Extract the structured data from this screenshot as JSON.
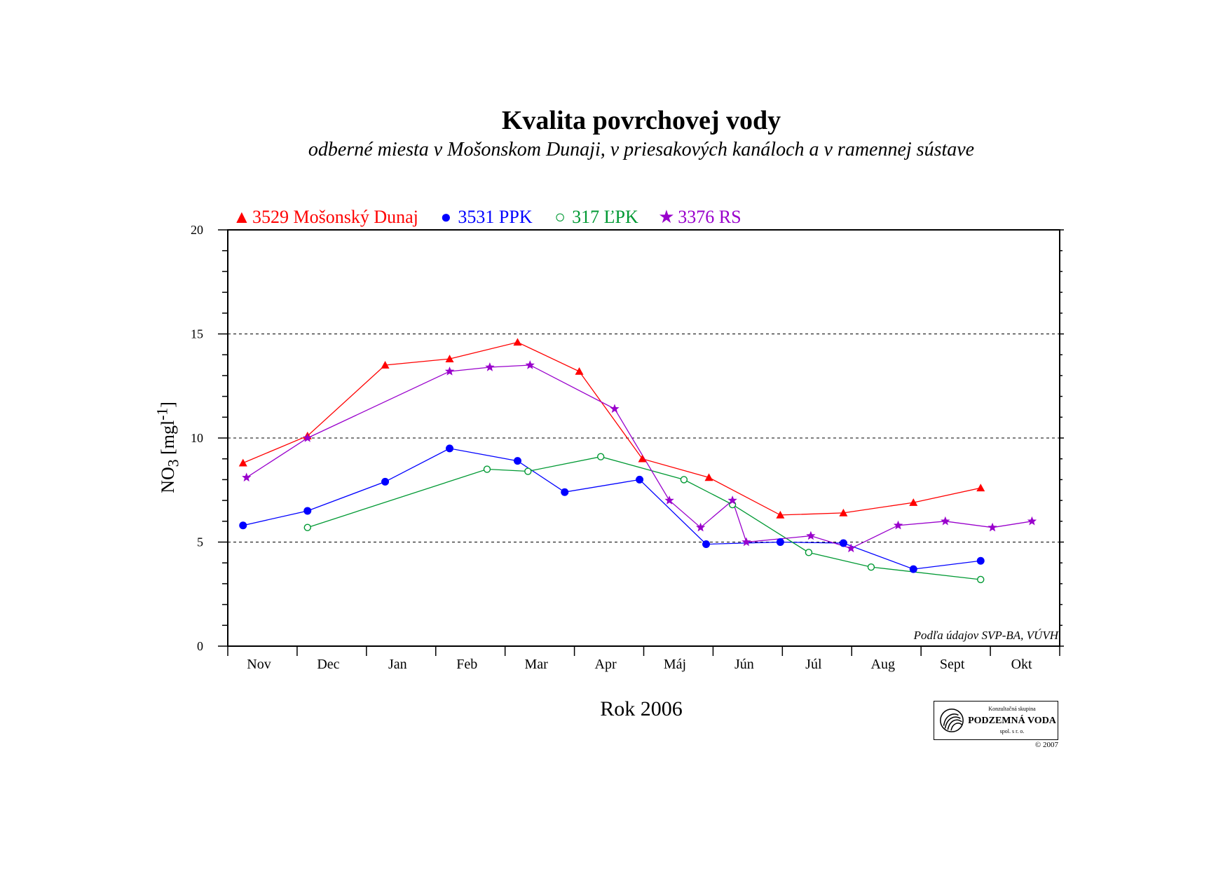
{
  "page": {
    "title": "Kvalita povrchovej vody",
    "subtitle": "odberné miesta v Mošonskom Dunaji, v priesakových kanáloch a v ramennej sústave",
    "source_note": "Podľa údajov SVP-BA, VÚVH",
    "logo": {
      "line1": "Konzultačná skupina",
      "line2": "PODZEMNÁ VODA",
      "line3": "spol. s r. o.",
      "copyright": "© 2007"
    }
  },
  "colors": {
    "s1": "#ff0000",
    "s2": "#0000ff",
    "s3": "#009933",
    "s4": "#9900cc",
    "grid": "#000000"
  },
  "chart_data": {
    "type": "line",
    "title": "Kvalita povrchovej vody",
    "xlabel": "Rok 2006",
    "ylabel_main": "NO",
    "ylabel_sub": "3",
    "ylabel_unit_open": " [mgl",
    "ylabel_unit_sup": "-1",
    "ylabel_unit_close": "]",
    "ylim": [
      0,
      20
    ],
    "yticks": [
      0,
      5,
      10,
      15,
      20
    ],
    "grid_y": [
      5,
      10,
      15
    ],
    "xlim": [
      0,
      12
    ],
    "categories": [
      "Nov",
      "Dec",
      "Jan",
      "Feb",
      "Mar",
      "Apr",
      "Máj",
      "Jún",
      "Júl",
      "Aug",
      "Sept",
      "Okt"
    ],
    "legend_position": "top-left",
    "series": [
      {
        "name": "3529 Mošonský Dunaj",
        "marker": "triangle",
        "color": "#ff0000",
        "points": [
          [
            0.22,
            8.8
          ],
          [
            1.15,
            10.1
          ],
          [
            2.27,
            13.5
          ],
          [
            3.2,
            13.8
          ],
          [
            4.18,
            14.6
          ],
          [
            5.07,
            13.2
          ],
          [
            5.98,
            9.0
          ],
          [
            6.94,
            8.1
          ],
          [
            7.97,
            6.3
          ],
          [
            8.88,
            6.4
          ],
          [
            9.89,
            6.9
          ],
          [
            10.86,
            7.6
          ]
        ]
      },
      {
        "name": "3531 PPK",
        "marker": "dot",
        "color": "#0000ff",
        "points": [
          [
            0.22,
            5.8
          ],
          [
            1.15,
            6.5
          ],
          [
            2.27,
            7.9
          ],
          [
            3.2,
            9.5
          ],
          [
            4.18,
            8.9
          ],
          [
            4.86,
            7.4
          ],
          [
            5.94,
            8.0
          ],
          [
            6.9,
            4.9
          ],
          [
            7.97,
            5.0
          ],
          [
            8.88,
            4.95
          ],
          [
            9.89,
            3.7
          ],
          [
            10.86,
            4.1
          ]
        ]
      },
      {
        "name": "317 ĽPK",
        "marker": "ring",
        "color": "#009933",
        "points": [
          [
            1.15,
            5.7
          ],
          [
            3.74,
            8.5
          ],
          [
            4.33,
            8.4
          ],
          [
            5.38,
            9.1
          ],
          [
            6.58,
            8.0
          ],
          [
            7.28,
            6.8
          ],
          [
            8.38,
            4.5
          ],
          [
            9.28,
            3.8
          ],
          [
            10.86,
            3.2
          ]
        ]
      },
      {
        "name": "3376 RS",
        "marker": "star",
        "color": "#9900cc",
        "points": [
          [
            0.27,
            8.1
          ],
          [
            1.15,
            10.0
          ],
          [
            3.2,
            13.2
          ],
          [
            3.78,
            13.4
          ],
          [
            4.36,
            13.5
          ],
          [
            5.58,
            11.4
          ],
          [
            6.37,
            7.0
          ],
          [
            6.82,
            5.7
          ],
          [
            7.28,
            7.0
          ],
          [
            7.48,
            5.0
          ],
          [
            8.41,
            5.3
          ],
          [
            8.99,
            4.7
          ],
          [
            9.67,
            5.8
          ],
          [
            10.35,
            6.0
          ],
          [
            11.03,
            5.7
          ],
          [
            11.6,
            6.0
          ]
        ]
      }
    ]
  }
}
